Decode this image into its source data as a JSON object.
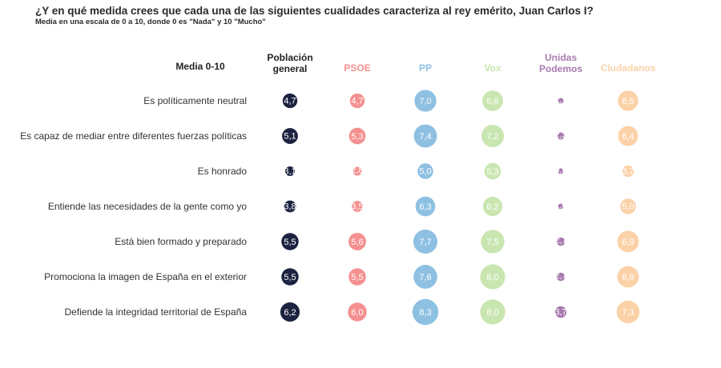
{
  "title": "¿Y en qué medida crees que cada una de las siguientes cualidades caracteriza al rey emérito, Juan Carlos I?",
  "subtitle": "Media en una escala de 0 a 10, donde 0 es \"Nada\" y 10 \"Mucho\"",
  "chart_data": {
    "type": "table",
    "corner_label": "Media 0-10",
    "columns": [
      {
        "name": [
          "Población",
          "general"
        ],
        "color": "#1c2340",
        "text_color": "#ffffff"
      },
      {
        "name": [
          "PSOE"
        ],
        "color": "#f4908f",
        "text_color": "#ffffff"
      },
      {
        "name": [
          "PP"
        ],
        "color": "#8ec0e2",
        "text_color": "#ffffff"
      },
      {
        "name": [
          "Vox"
        ],
        "color": "#c9e6b1",
        "text_color": "#ffffff"
      },
      {
        "name": [
          "Unidas",
          "Podemos"
        ],
        "color": "#a97bb0",
        "text_color": "#ffffff"
      },
      {
        "name": [
          "Ciudadanos"
        ],
        "color": "#fbd2a8",
        "text_color": "#ffffff"
      }
    ],
    "rows": [
      {
        "label": "Es políticamente neutral",
        "values": [
          "4,7",
          "4,7",
          "7,0",
          "6,6",
          "1,7",
          "6,5"
        ]
      },
      {
        "label": "Es capaz de mediar entre diferentes fuerzas políticas",
        "values": [
          "5,1",
          "5,3",
          "7,4",
          "7,2",
          "2,3",
          "6,4"
        ]
      },
      {
        "label": "Es honrado",
        "values": [
          "3,1",
          "2,8",
          "5,0",
          "5,3",
          "0,8",
          "3,7"
        ]
      },
      {
        "label": "Entiende las necesidades de la gente como yo",
        "values": [
          "3,8",
          "3,5",
          "6,3",
          "6,2",
          "1,0",
          "5,0"
        ]
      },
      {
        "label": "Está bien formado y preparado",
        "values": [
          "5,5",
          "5,6",
          "7,7",
          "7,5",
          "2,7",
          "6,9"
        ]
      },
      {
        "label": "Promociona la imagen de España en el exterior",
        "values": [
          "5,5",
          "5,5",
          "7,6",
          "8,0",
          "2,7",
          "6,9"
        ]
      },
      {
        "label": "Defiende la integridad territorial de España",
        "values": [
          "6,2",
          "6,0",
          "8,3",
          "8,0",
          "3,7",
          "7,3"
        ]
      }
    ]
  }
}
